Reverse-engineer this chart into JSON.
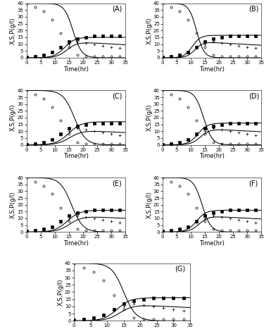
{
  "time_exp": [
    0,
    3,
    6,
    9,
    12,
    15,
    18,
    21,
    24,
    27,
    30,
    33
  ],
  "S_exp": [
    40,
    37,
    34,
    28,
    18,
    8,
    2,
    1,
    1,
    1,
    1,
    1
  ],
  "X_exp": [
    0.5,
    1,
    2,
    4,
    8,
    12,
    14,
    15,
    16,
    16,
    16,
    16
  ],
  "P_exp": [
    0,
    1,
    2,
    4,
    7,
    10,
    12,
    11,
    10,
    9,
    8,
    7
  ],
  "panels": [
    {
      "label": "A",
      "X_max": 15.0,
      "X_k": 0.55,
      "X_t0": 13.5,
      "S_k": 0.65,
      "S_t0": 16.5,
      "P_max": 12.0,
      "P_k": 0.55,
      "P_t0": 14.5,
      "P_decay": 0.12
    },
    {
      "label": "B",
      "X_max": 16.5,
      "X_k": 0.7,
      "X_t0": 10.5,
      "S_k": 0.75,
      "S_t0": 12.0,
      "P_max": 12.0,
      "P_k": 0.7,
      "P_t0": 11.5,
      "P_decay": 0.12
    },
    {
      "label": "C",
      "X_max": 17.0,
      "X_k": 0.45,
      "X_t0": 15.0,
      "S_k": 0.5,
      "S_t0": 17.0,
      "P_max": 11.0,
      "P_k": 0.45,
      "P_t0": 15.5,
      "P_decay": 0.1
    },
    {
      "label": "D",
      "X_max": 16.0,
      "X_k": 0.6,
      "X_t0": 12.5,
      "S_k": 0.65,
      "S_t0": 14.5,
      "P_max": 12.0,
      "P_k": 0.6,
      "P_t0": 13.5,
      "P_decay": 0.11
    },
    {
      "label": "E",
      "X_max": 16.0,
      "X_k": 0.45,
      "X_t0": 14.5,
      "S_k": 0.5,
      "S_t0": 16.0,
      "P_max": 12.0,
      "P_k": 0.45,
      "P_t0": 15.5,
      "P_decay": 0.1
    },
    {
      "label": "F",
      "X_max": 16.0,
      "X_k": 0.6,
      "X_t0": 12.0,
      "S_k": 0.65,
      "S_t0": 14.0,
      "P_max": 12.0,
      "P_k": 0.6,
      "P_t0": 13.0,
      "P_decay": 0.11
    },
    {
      "label": "G",
      "X_max": 16.0,
      "X_k": 0.5,
      "X_t0": 13.0,
      "S_k": 0.55,
      "S_t0": 15.0,
      "P_max": 11.5,
      "P_k": 0.5,
      "P_t0": 14.0,
      "P_decay": 0.11
    }
  ],
  "ylim": [
    0,
    40
  ],
  "xlim": [
    0,
    35
  ],
  "xlabel": "Time(hr)",
  "ylabel": "X,S,P(g/l)",
  "bg_color": "white",
  "tick_fontsize": 5,
  "label_fontsize": 6,
  "panel_label_fontsize": 7,
  "lw": 0.75,
  "ms": 2.2,
  "mew": 0.5
}
